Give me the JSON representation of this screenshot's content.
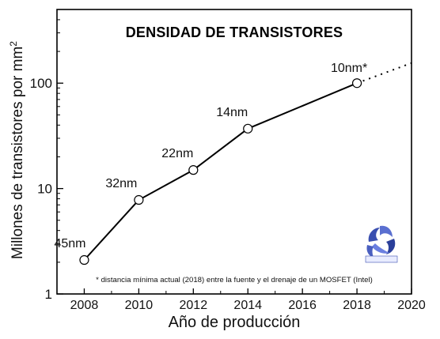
{
  "chart_data": {
    "type": "line",
    "title": "DENSIDAD DE TRANSISTORES",
    "xlabel": "Año de producción",
    "ylabel_main": "Millones de transistores por mm",
    "ylabel_sup": "2",
    "xlim": [
      2007,
      2020
    ],
    "ylim": [
      1,
      500
    ],
    "yscale": "log",
    "x_ticks": [
      "2008",
      "2010",
      "2012",
      "2014",
      "2016",
      "2018",
      "2020"
    ],
    "y_ticks": [
      {
        "value": 1,
        "label": "1"
      },
      {
        "value": 10,
        "label": "10"
      },
      {
        "value": 100,
        "label": "100"
      }
    ],
    "series": [
      {
        "points": [
          {
            "x": 2008,
            "y": 2.1,
            "label": "45nm"
          },
          {
            "x": 2010,
            "y": 7.8,
            "label": "32nm"
          },
          {
            "x": 2012,
            "y": 15,
            "label": "22nm"
          },
          {
            "x": 2014,
            "y": 37,
            "label": "14nm"
          },
          {
            "x": 2018,
            "y": 100,
            "label": "10nm*"
          }
        ],
        "projection": [
          {
            "x": 2018,
            "y": 100
          },
          {
            "x": 2020,
            "y": 155
          }
        ]
      }
    ],
    "footnote": "* distancia mínima actual (2018) entre la fuente y el drenaje de un MOSFET (Intel)",
    "logo": "inaoe-logo",
    "grid": false
  }
}
